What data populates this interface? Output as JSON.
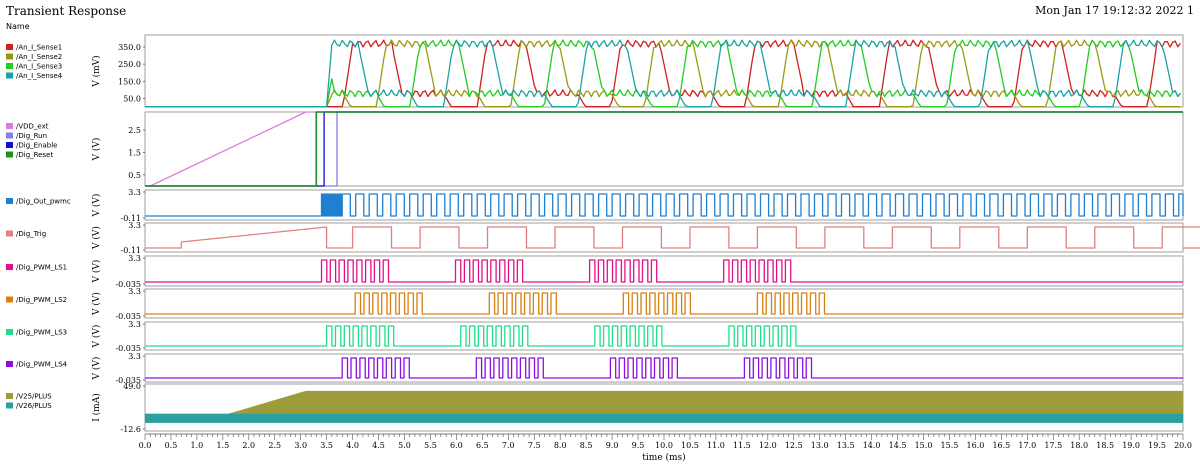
{
  "header": {
    "title": "Transient Response",
    "timestamp": "Mon Jan 17 19:12:32 2022  1",
    "name_column": "Name"
  },
  "chart_data": {
    "type": "line",
    "xlabel": "time (ms)",
    "xlim": [
      0,
      20
    ],
    "x_ticks": [
      "0.0",
      "0.5",
      "1.0",
      "1.5",
      "2.0",
      "2.5",
      "3.0",
      "3.5",
      "4.0",
      "4.5",
      "5.0",
      "5.5",
      "6.0",
      "6.5",
      "7.0",
      "7.5",
      "8.0",
      "8.5",
      "9.0",
      "9.5",
      "10.0",
      "10.5",
      "11.0",
      "11.5",
      "12.0",
      "12.5",
      "13.0",
      "13.5",
      "14.0",
      "14.5",
      "15.0",
      "15.5",
      "16.0",
      "16.5",
      "17.0",
      "17.5",
      "18.0",
      "18.5",
      "19.0",
      "19.5",
      "20.0"
    ],
    "panels": [
      {
        "id": "sense",
        "ylabel": "V (mV)",
        "ylim": [
          0,
          420
        ],
        "y_ticks": [
          "350.0",
          "250.0",
          "150.0",
          "50.0"
        ],
        "y_tick_values": [
          350,
          250,
          150,
          50
        ],
        "series": [
          {
            "name": "/An_I_Sense1",
            "color": "#d11f1f"
          },
          {
            "name": "/An_I_Sense2",
            "color": "#9a9a12"
          },
          {
            "name": "/An_I_Sense3",
            "color": "#22cc22"
          },
          {
            "name": "/An_I_Sense4",
            "color": "#1aa3a3"
          }
        ]
      },
      {
        "id": "supply",
        "ylabel": "V (V)",
        "ylim": [
          0,
          3.3
        ],
        "y_ticks": [
          "2.5",
          "1.5",
          "0.5"
        ],
        "y_tick_values": [
          2.5,
          1.5,
          0.5
        ],
        "series": [
          {
            "name": "/VDD_ext",
            "color": "#e07ae0"
          },
          {
            "name": "/Dig_Run",
            "color": "#8080e0"
          },
          {
            "name": "/Dig_Enable",
            "color": "#1010d0"
          },
          {
            "name": "/Dig_Reset",
            "color": "#1f8f1f"
          }
        ]
      },
      {
        "id": "pwmc",
        "ylabel": "V (V)",
        "y_ticks": [
          "3.3",
          "-0.11"
        ],
        "series": [
          {
            "name": "/Dig_Out_pwmc",
            "color": "#1f7fd0"
          }
        ]
      },
      {
        "id": "trig",
        "ylabel": "V (V)",
        "y_ticks": [
          "3.3",
          "-0.11"
        ],
        "series": [
          {
            "name": "/Dig_Trig",
            "color": "#e08080"
          }
        ]
      },
      {
        "id": "ls1",
        "ylabel": "V (V)",
        "y_ticks": [
          "3.3",
          "-0.035"
        ],
        "series": [
          {
            "name": "/Dig_PWM_LS1",
            "color": "#e0108a"
          }
        ]
      },
      {
        "id": "ls2",
        "ylabel": "V (V)",
        "y_ticks": [
          "3.3",
          "-0.035"
        ],
        "series": [
          {
            "name": "/Dig_PWM_LS2",
            "color": "#d98010"
          }
        ]
      },
      {
        "id": "ls3",
        "ylabel": "V (V)",
        "y_ticks": [
          "3.3",
          "-0.035"
        ],
        "series": [
          {
            "name": "/Dig_PWM_LS3",
            "color": "#22dd88"
          }
        ]
      },
      {
        "id": "ls4",
        "ylabel": "V (V)",
        "y_ticks": [
          "3.3",
          "-0.035"
        ],
        "series": [
          {
            "name": "/Dig_PWM_LS4",
            "color": "#8a10e0"
          }
        ]
      },
      {
        "id": "current",
        "ylabel": "I (mA)",
        "ylim": [
          -12.6,
          49.0
        ],
        "y_ticks": [
          "49.0",
          "-12.6"
        ],
        "series": [
          {
            "name": "/V25/PLUS",
            "color": "#9c9c3a"
          },
          {
            "name": "/V26/PLUS",
            "color": "#2aa0a0"
          }
        ]
      }
    ]
  }
}
